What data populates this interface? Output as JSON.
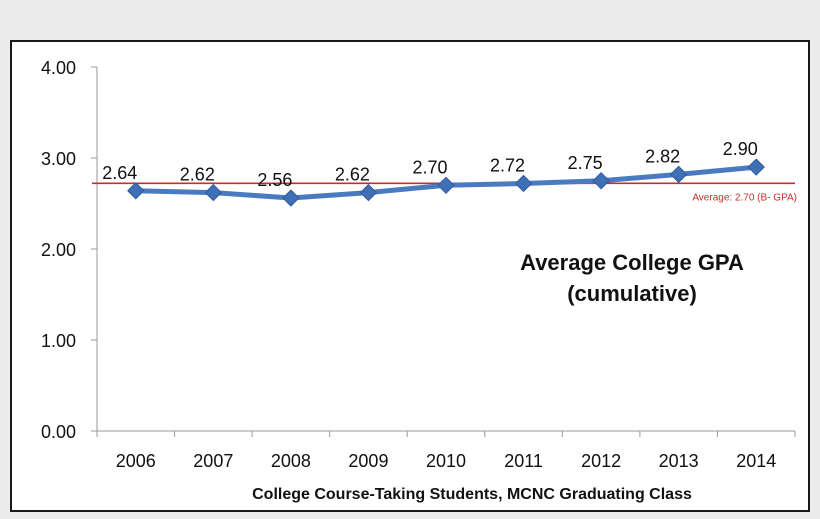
{
  "chart_data": {
    "type": "line",
    "title_lines": [
      "Average College GPA",
      "(cumulative)"
    ],
    "xlabel": "College Course-Taking Students, MCNC Graduating Class",
    "ylabel": "",
    "categories": [
      "2006",
      "2007",
      "2008",
      "2009",
      "2010",
      "2011",
      "2012",
      "2013",
      "2014"
    ],
    "series": [
      {
        "name": "Average College GPA",
        "values": [
          2.64,
          2.62,
          2.56,
          2.62,
          2.7,
          2.72,
          2.75,
          2.82,
          2.9
        ],
        "labels": [
          "2.64",
          "2.62",
          "2.56",
          "2.62",
          "2.70",
          "2.72",
          "2.75",
          "2.82",
          "2.90"
        ],
        "color": "#4a7bc0",
        "marker_color": "#3f6fb5"
      }
    ],
    "reference_line": {
      "value": 2.7,
      "label": "Average:  2.70 (B- GPA)",
      "color": "#c0302e"
    },
    "ylim": [
      0,
      4
    ],
    "y_ticks": [
      "0.00",
      "1.00",
      "2.00",
      "3.00",
      "4.00"
    ],
    "grid": false
  }
}
